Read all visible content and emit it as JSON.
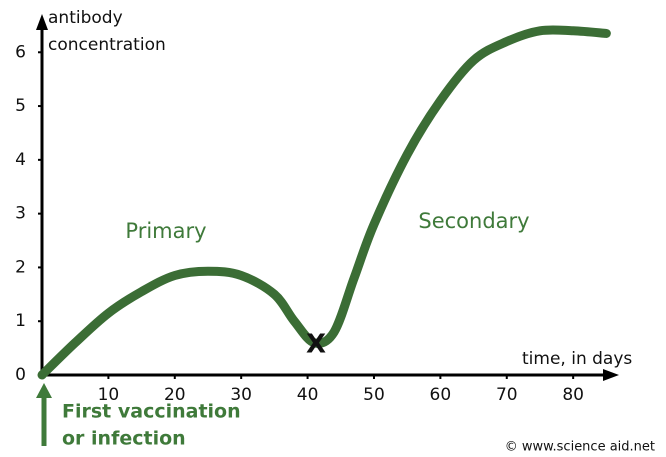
{
  "chart_data": {
    "type": "line",
    "ylabel": [
      "antibody",
      "concentration"
    ],
    "xlabel": "time, in days",
    "x": [
      0,
      5,
      10,
      15,
      20,
      25,
      30,
      35,
      38,
      41,
      44,
      47,
      50,
      55,
      60,
      65,
      70,
      75,
      80,
      85
    ],
    "series": [
      {
        "color": "#3b6d35",
        "values": [
          0,
          0.6,
          1.15,
          1.55,
          1.85,
          1.93,
          1.85,
          1.5,
          1.0,
          0.6,
          0.8,
          1.8,
          2.8,
          4.1,
          5.1,
          5.85,
          6.2,
          6.4,
          6.4,
          6.35
        ]
      }
    ],
    "xlim": [
      0,
      86
    ],
    "ylim": [
      0,
      6.6
    ],
    "xticks": [
      10,
      20,
      30,
      40,
      50,
      60,
      70,
      80
    ],
    "yticks": [
      0,
      1,
      2,
      3,
      4,
      5,
      6
    ],
    "annotations": {
      "primary": "Primary",
      "secondary": "Secondary",
      "marker": "X",
      "first": [
        "First vaccination",
        "or infection"
      ],
      "credit": "© www.science aid.net"
    }
  }
}
